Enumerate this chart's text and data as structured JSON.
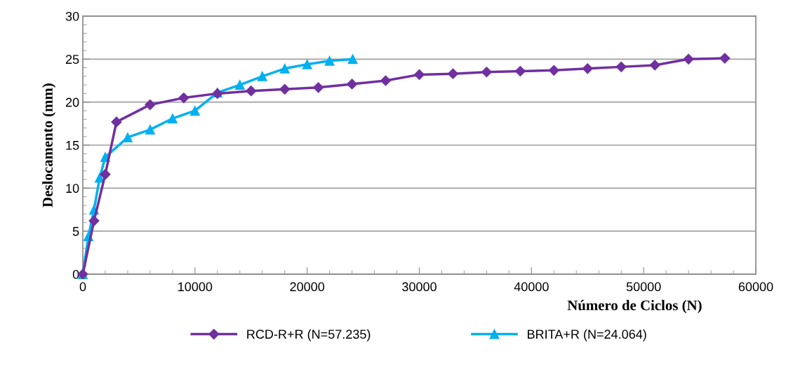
{
  "chart_data": {
    "type": "line",
    "xlabel": "Número de Ciclos (N)",
    "ylabel": "Deslocamento (mm)",
    "xlim": [
      0,
      60000
    ],
    "xticks": [
      0,
      10000,
      20000,
      30000,
      40000,
      50000,
      60000
    ],
    "ylim": [
      0,
      30
    ],
    "yticks": [
      0,
      5,
      10,
      15,
      20,
      25,
      30
    ],
    "grid": "y",
    "legend": "bottom",
    "series": [
      {
        "name": "RCD-R+R (N=57.235)",
        "color": "#7030a0",
        "marker": "diamond",
        "x": [
          0,
          1000,
          2000,
          3000,
          6000,
          9000,
          12000,
          15000,
          18000,
          21000,
          24000,
          27000,
          30000,
          33000,
          36000,
          39000,
          42000,
          45000,
          48000,
          51000,
          54000,
          57235
        ],
        "values": [
          0,
          6.2,
          11.6,
          17.7,
          19.7,
          20.5,
          21.0,
          21.3,
          21.5,
          21.7,
          22.1,
          22.5,
          23.2,
          23.3,
          23.5,
          23.6,
          23.7,
          23.9,
          24.1,
          24.3,
          25.0,
          25.1
        ]
      },
      {
        "name": "BRITA+R (N=24.064)",
        "color": "#00b0f0",
        "marker": "triangle",
        "x": [
          0,
          500,
          1000,
          1500,
          2000,
          4000,
          6000,
          8000,
          10000,
          12000,
          14000,
          16000,
          18000,
          20000,
          22000,
          24064
        ],
        "values": [
          0,
          4.4,
          7.5,
          11.2,
          13.6,
          15.9,
          16.8,
          18.1,
          19.0,
          21.1,
          22.0,
          23.0,
          23.9,
          24.4,
          24.8,
          25.0
        ]
      }
    ]
  }
}
